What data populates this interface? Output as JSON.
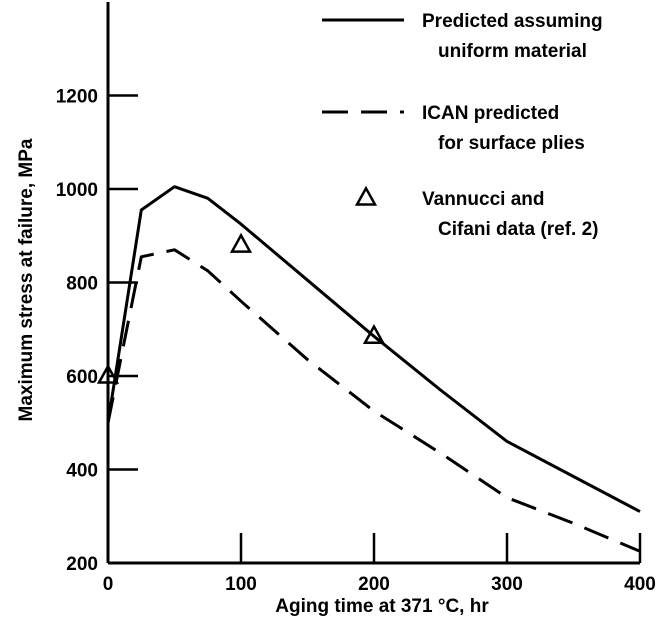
{
  "chart_data": {
    "type": "line",
    "xlabel": "Aging time at 371 °C, hr",
    "ylabel": "Maximum stress at failure, MPa",
    "xlim": [
      0,
      400
    ],
    "ylim": [
      200,
      1400
    ],
    "x_ticks": [
      0,
      100,
      200,
      300,
      400
    ],
    "y_ticks": [
      200,
      400,
      600,
      800,
      1000,
      1200
    ],
    "grid": false,
    "legend_position": "top-right",
    "series": [
      {
        "name": "Predicted assuming uniform material",
        "legend_lines": [
          "Predicted assuming",
          "uniform material"
        ],
        "style": "solid",
        "color": "#000000",
        "x": [
          0,
          25,
          50,
          75,
          100,
          150,
          200,
          250,
          300,
          350,
          400
        ],
        "y": [
          500,
          955,
          1005,
          980,
          925,
          805,
          685,
          570,
          460,
          385,
          310
        ]
      },
      {
        "name": "ICAN predicted for surface plies",
        "legend_lines": [
          "ICAN predicted",
          "for surface plies"
        ],
        "style": "dashed",
        "color": "#000000",
        "x": [
          0,
          25,
          50,
          75,
          100,
          150,
          200,
          250,
          300,
          350,
          400
        ],
        "y": [
          500,
          855,
          870,
          825,
          760,
          635,
          525,
          435,
          340,
          285,
          225
        ]
      },
      {
        "name": "Vannucci and Cifani data (ref. 2)",
        "legend_lines": [
          "Vannucci and",
          "Cifani data (ref. 2)"
        ],
        "style": "marker",
        "marker": "triangle-open",
        "color": "#000000",
        "x": [
          0,
          100,
          200
        ],
        "y": [
          600,
          880,
          685
        ]
      }
    ]
  }
}
